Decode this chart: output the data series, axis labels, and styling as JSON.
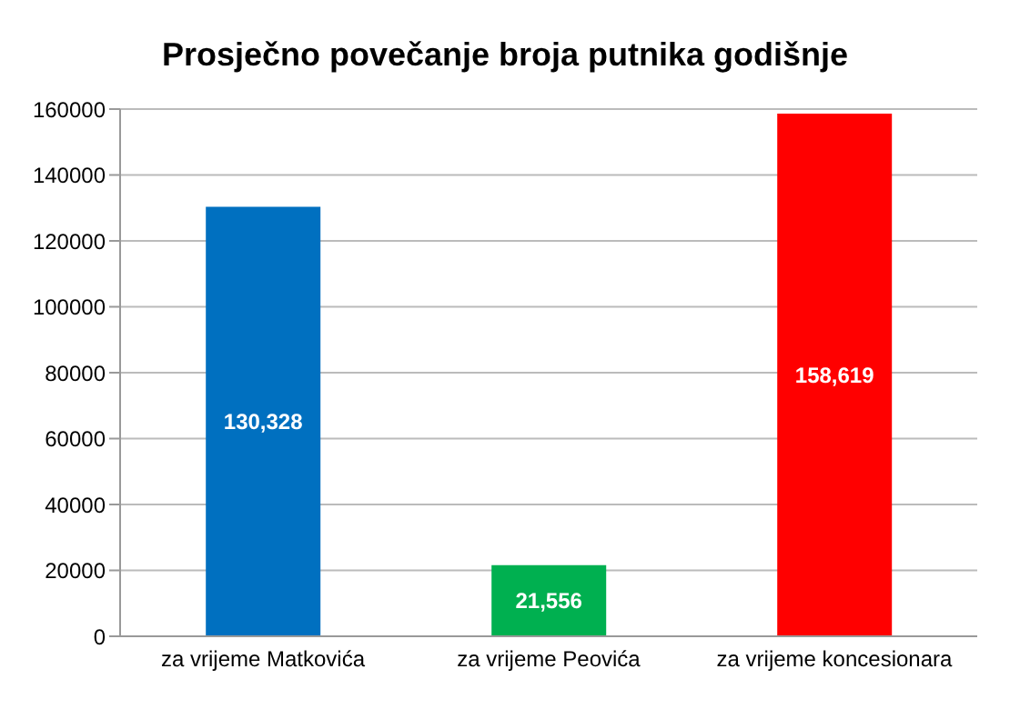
{
  "chart_data": {
    "type": "bar",
    "title": "Prosječno povečanje broja putnika godišnje",
    "categories": [
      "za vrijeme Matkovića",
      "za vrijeme Peovića",
      "za vrijeme koncesionara"
    ],
    "values": [
      130328,
      21556,
      158619
    ],
    "value_labels": [
      "130,328",
      "21,556",
      "158,619"
    ],
    "colors": [
      "#0070c0",
      "#00b050",
      "#ff0000"
    ],
    "ylim": [
      0,
      160000
    ],
    "yticks": [
      0,
      20000,
      40000,
      60000,
      80000,
      100000,
      120000,
      140000,
      160000
    ],
    "grid": "y"
  }
}
